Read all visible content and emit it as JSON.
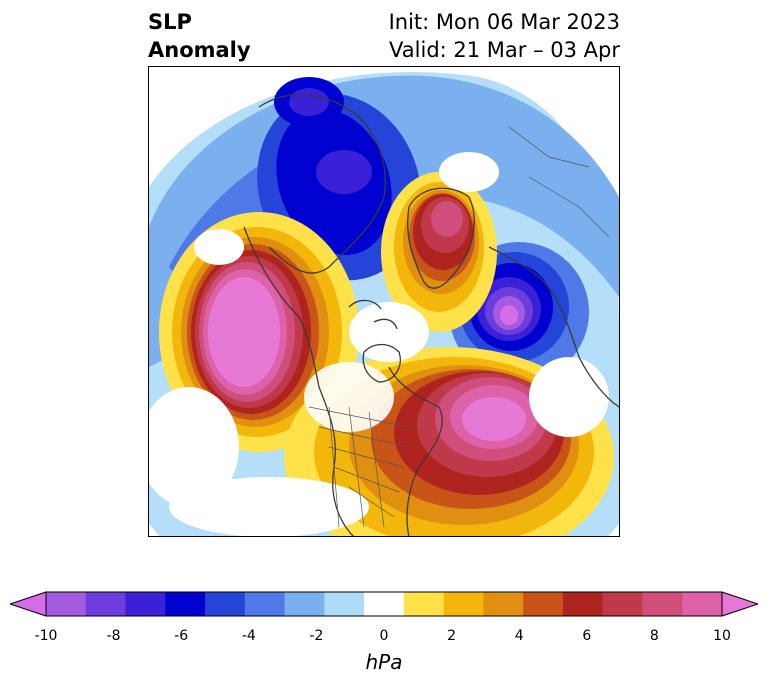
{
  "title": {
    "variable_line1": "SLP",
    "variable_line2": "Anomaly",
    "init_label": "Init: Mon 06 Mar 2023",
    "valid_label": "Valid: 21 Mar – 03 Apr"
  },
  "map": {
    "projection": "north-polar-stereographic",
    "features": [
      {
        "name": "north-pacific-high-anomaly",
        "sign": "positive",
        "max_hpa": 10
      },
      {
        "name": "western-atlantic-high-anomaly",
        "sign": "positive",
        "max_hpa": 10
      },
      {
        "name": "greenland-high-anomaly",
        "sign": "positive",
        "max_hpa": 8
      },
      {
        "name": "siberia-low-anomaly",
        "sign": "negative",
        "min_hpa": -8
      },
      {
        "name": "northern-europe-low-anomaly",
        "sign": "negative",
        "min_hpa": -10
      }
    ]
  },
  "colorbar": {
    "unit": "hPa",
    "ticks": [
      "-10",
      "-8",
      "-6",
      "-4",
      "-2",
      "0",
      "2",
      "4",
      "6",
      "8",
      "10"
    ],
    "colors": [
      "#d56de8",
      "#a35be0",
      "#6c3ddc",
      "#3a20d6",
      "#0000cf",
      "#2544d8",
      "#4f79e6",
      "#7ab0ee",
      "#addcf7",
      "#ffffff",
      "#ffe24a",
      "#f3b60b",
      "#e08f10",
      "#c95418",
      "#b0241f",
      "#c0394a",
      "#cf4e7b",
      "#dd62aa",
      "#e878d6"
    ],
    "extend": "both"
  }
}
